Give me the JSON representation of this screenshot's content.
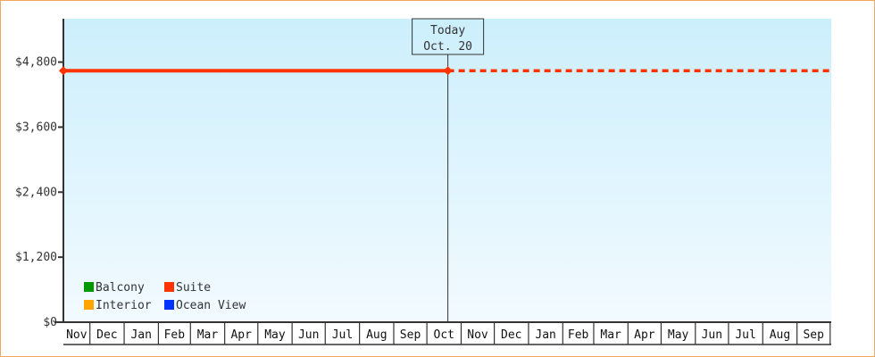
{
  "chart_data": {
    "type": "line",
    "title": "",
    "xlabel": "",
    "ylabel": "",
    "ylim": [
      0,
      5600
    ],
    "y_ticks": [
      0,
      1200,
      2400,
      3600,
      4800
    ],
    "y_tick_labels": [
      "$0",
      "$1,200",
      "$2,400",
      "$3,600",
      "$4,800"
    ],
    "x_range": [
      "Nov 7",
      "Oct 2"
    ],
    "x_tick_labels": [
      "Nov",
      "Dec",
      "Jan",
      "Feb",
      "Mar",
      "Apr",
      "May",
      "Jun",
      "Jul",
      "Aug",
      "Sep",
      "Oct",
      "Nov",
      "Dec",
      "Jan",
      "Feb",
      "Mar",
      "Apr",
      "May",
      "Jun",
      "Jul",
      "Aug",
      "Sep"
    ],
    "grid": false,
    "today_marker": {
      "label": "Today",
      "date": "Oct. 20"
    },
    "legend_placement": "bottom-left",
    "legend": [
      {
        "name": "Balcony",
        "color": "#009900"
      },
      {
        "name": "Suite",
        "color": "#ff3300"
      },
      {
        "name": "Interior",
        "color": "#ffa500"
      },
      {
        "name": "Ocean View",
        "color": "#0033ff"
      }
    ],
    "series": [
      {
        "name": "Suite",
        "color": "#ff3300",
        "points": [
          {
            "x": "Nov 7",
            "y": 4640
          },
          {
            "x": "Oct 20",
            "y": 4640
          }
        ],
        "projection": [
          {
            "x": "Oct 20",
            "y": 4640
          },
          {
            "x": "Oct 2",
            "y": 4640
          }
        ]
      }
    ],
    "background_gradient": [
      "#cceffc",
      "#f2faff"
    ]
  }
}
